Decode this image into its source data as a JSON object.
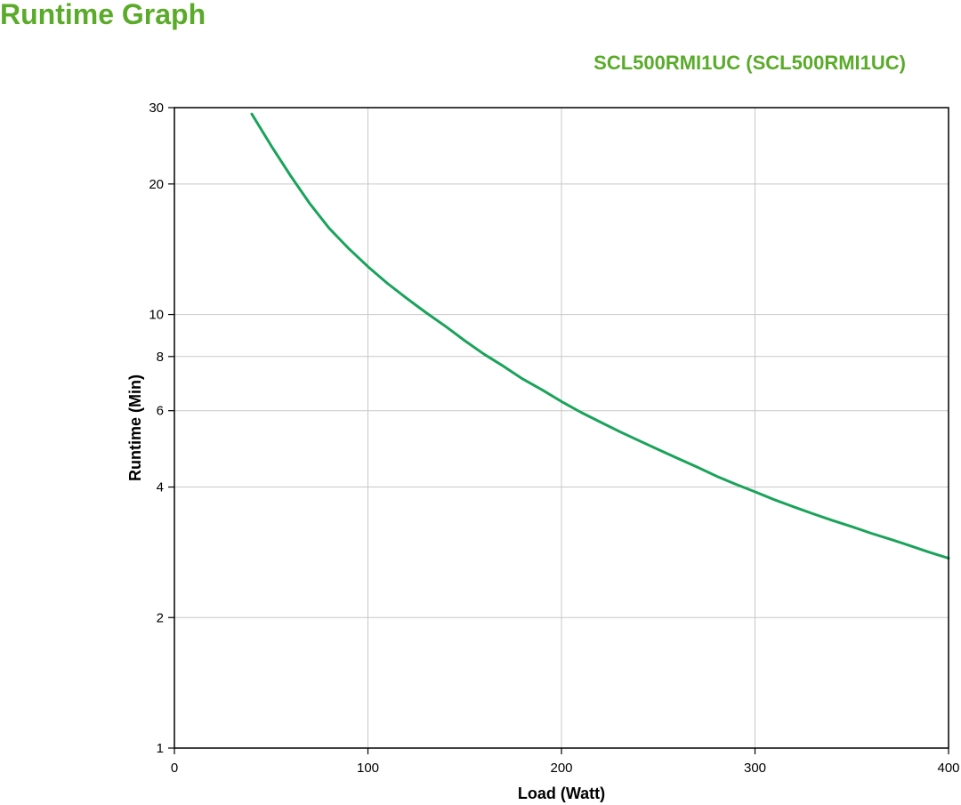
{
  "header": {
    "title": "Runtime Graph"
  },
  "chart_data": {
    "type": "line",
    "subtitle": "SCL500RMI1UC (SCL500RMI1UC)",
    "xlabel": "Load (Watt)",
    "ylabel": "Runtime (Min)",
    "xlim": [
      0,
      400
    ],
    "ylim": [
      1,
      30
    ],
    "yscale": "log",
    "grid": true,
    "x_ticks": [
      0,
      100,
      200,
      300,
      400
    ],
    "y_ticks": [
      1,
      2,
      4,
      6,
      8,
      10,
      20,
      30
    ],
    "line_color": "#1aa35a",
    "series": [
      {
        "x": [
          40,
          50,
          60,
          70,
          80,
          90,
          100,
          110,
          120,
          130,
          140,
          150,
          160,
          170,
          180,
          190,
          200,
          210,
          220,
          230,
          240,
          250,
          260,
          270,
          280,
          290,
          300,
          310,
          320,
          330,
          340,
          350,
          360,
          370,
          380,
          390,
          400
        ],
        "y": [
          29.0,
          24.5,
          20.9,
          18.0,
          15.8,
          14.2,
          12.9,
          11.8,
          10.9,
          10.1,
          9.4,
          8.7,
          8.1,
          7.6,
          7.1,
          6.7,
          6.3,
          5.95,
          5.65,
          5.37,
          5.12,
          4.88,
          4.66,
          4.45,
          4.24,
          4.06,
          3.9,
          3.74,
          3.6,
          3.47,
          3.35,
          3.24,
          3.13,
          3.03,
          2.93,
          2.83,
          2.74
        ]
      }
    ]
  }
}
